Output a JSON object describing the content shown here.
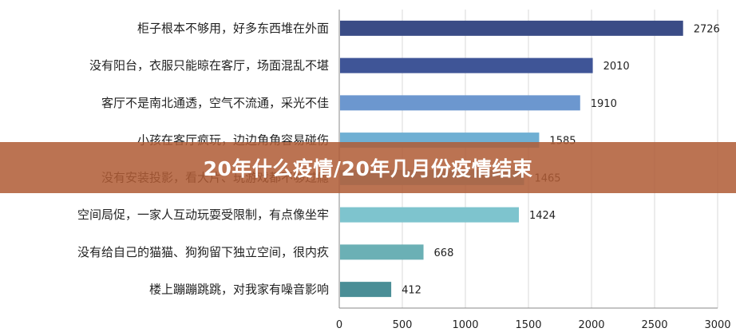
{
  "banner": {
    "title": "20年什么疫情/20年几月份疫情结束"
  },
  "colors": {
    "banner_bg": "#B05C36",
    "axis": "#888888",
    "grid": "#D9D9D9"
  },
  "chart_data": {
    "type": "bar",
    "orientation": "horizontal",
    "title": "",
    "xlabel": "",
    "ylabel": "",
    "xlim": [
      0,
      3000
    ],
    "x_ticks": [
      0,
      500,
      1000,
      1500,
      2000,
      2500,
      3000
    ],
    "grid": true,
    "categories": [
      "柜子根本不够用，好多东西堆在外面",
      "没有阳台，衣服只能晾在客厅，场面混乱不堪",
      "客厅不是南北通透，空气不流通，采光不佳",
      "小孩在客厅疯玩，边边角角容易碰伤",
      "没有安装投影，看大片、玩游戏都不够过瘾",
      "空间局促，一家人互动玩耍受限制，有点像坐牢",
      "没有给自己的猫猫、狗狗留下独立空间，很内疚",
      "楼上蹦蹦跳跳，对我家有噪音影响"
    ],
    "values": [
      2726,
      2010,
      1910,
      1585,
      1465,
      1424,
      668,
      412
    ],
    "bar_colors": [
      "#3A4C86",
      "#3F5597",
      "#6C97CF",
      "#6FAFD3",
      "#7DBDD5",
      "#7EC4CE",
      "#6BB0B5",
      "#4A8E96"
    ]
  }
}
